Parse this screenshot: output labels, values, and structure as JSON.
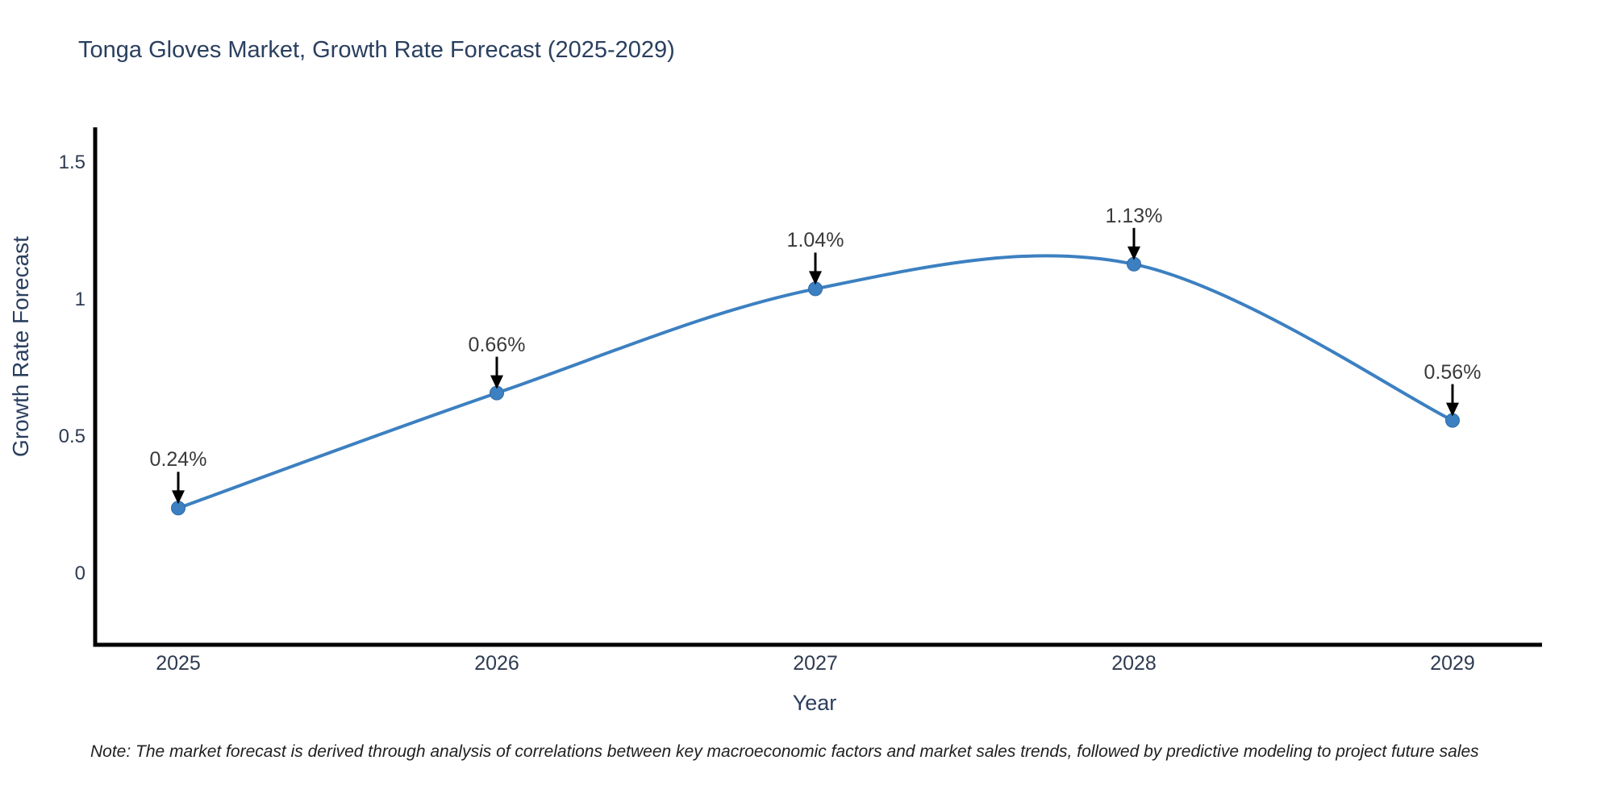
{
  "page": {
    "background": "#ffffff"
  },
  "chart_data": {
    "type": "line",
    "title": "Tonga Gloves Market, Growth Rate Forecast (2025-2029)",
    "xlabel": "Year",
    "ylabel": "Growth Rate Forecast",
    "categories": [
      2025,
      2026,
      2027,
      2028,
      2029
    ],
    "series": [
      {
        "name": "Growth Rate Forecast",
        "values": [
          0.24,
          0.66,
          1.04,
          1.13,
          0.56
        ]
      }
    ],
    "point_labels": [
      "0.24%",
      "0.66%",
      "1.04%",
      "1.13%",
      "0.56%"
    ],
    "xtick_labels": [
      "2025",
      "2026",
      "2027",
      "2028",
      "2029"
    ],
    "ytick_values": [
      0,
      0.5,
      1,
      1.5
    ],
    "ytick_labels": [
      "0",
      "0.5",
      "1",
      "1.5"
    ],
    "ylim": [
      -0.26,
      1.62
    ],
    "line_shape": "spline",
    "grid": false,
    "legend": false,
    "colors": {
      "line": "#3c80c1",
      "marker_fill": "#3c80c1",
      "marker_edge": "#2e6ba8",
      "annotation_arrow": "#000000",
      "axis": "#000000"
    }
  },
  "note": "Note: The market forecast is derived through analysis of correlations between key macroeconomic factors and market sales trends, followed by predictive modeling to project future sales",
  "text_colors": {
    "title": "#2a3f5f",
    "axis_titles": "#2a3f5f",
    "ticks": "#2e3b51",
    "annotations": "#3a3a3a",
    "note": "#1f1f1f"
  }
}
